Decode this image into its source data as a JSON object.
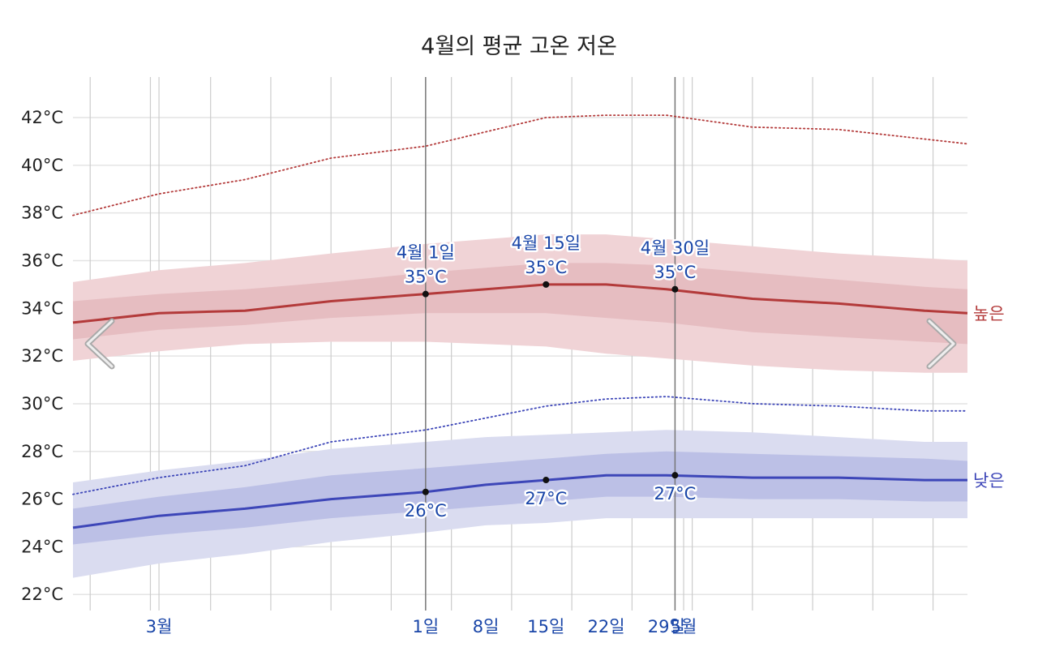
{
  "chart_data": {
    "type": "line",
    "title": "4월의 평균 고온 저온",
    "xlabel": "",
    "ylabel": "",
    "x_start": "2024-02-20",
    "x_end": "2024-06-03",
    "x_ticks": [
      {
        "date": "2024-03-01",
        "label": "3월"
      },
      {
        "date": "2024-04-01",
        "label": "1일"
      },
      {
        "date": "2024-04-08",
        "label": "8일"
      },
      {
        "date": "2024-04-15",
        "label": "15일"
      },
      {
        "date": "2024-04-22",
        "label": "22일"
      },
      {
        "date": "2024-04-29",
        "label": "29일"
      },
      {
        "date": "2024-05-01",
        "label": "5월"
      }
    ],
    "y_ticks": [
      {
        "value": 22,
        "label": "22°C"
      },
      {
        "value": 24,
        "label": "24°C"
      },
      {
        "value": 26,
        "label": "26°C"
      },
      {
        "value": 28,
        "label": "28°C"
      },
      {
        "value": 30,
        "label": "30°C"
      },
      {
        "value": 32,
        "label": "32°C"
      },
      {
        "value": 34,
        "label": "34°C"
      },
      {
        "value": 36,
        "label": "36°C"
      },
      {
        "value": 38,
        "label": "38°C"
      },
      {
        "value": 40,
        "label": "40°C"
      },
      {
        "value": 42,
        "label": "42°C"
      }
    ],
    "ylim": [
      21.6,
      43.7
    ],
    "grid": true,
    "x": [
      "2024-02-20",
      "2024-03-01",
      "2024-03-11",
      "2024-03-21",
      "2024-04-01",
      "2024-04-08",
      "2024-04-15",
      "2024-04-22",
      "2024-04-29",
      "2024-05-09",
      "2024-05-19",
      "2024-05-29",
      "2024-06-03"
    ],
    "series": [
      {
        "name": "높은",
        "color": "#b33a3a",
        "values": [
          33.4,
          33.8,
          33.9,
          34.3,
          34.6,
          34.8,
          35.0,
          35.0,
          34.8,
          34.4,
          34.2,
          33.9,
          33.8
        ],
        "band_p25": [
          32.7,
          33.1,
          33.3,
          33.6,
          33.8,
          33.8,
          33.8,
          33.6,
          33.4,
          33.0,
          32.8,
          32.6,
          32.5
        ],
        "band_p75": [
          34.3,
          34.6,
          34.8,
          35.1,
          35.5,
          35.7,
          35.9,
          35.9,
          35.8,
          35.5,
          35.2,
          34.9,
          34.8
        ],
        "band_p10": [
          31.8,
          32.2,
          32.5,
          32.6,
          32.6,
          32.5,
          32.4,
          32.1,
          31.9,
          31.6,
          31.4,
          31.3,
          31.3
        ],
        "band_p90": [
          35.1,
          35.6,
          35.9,
          36.3,
          36.7,
          36.9,
          37.1,
          37.1,
          36.9,
          36.6,
          36.3,
          36.1,
          36.0
        ],
        "record": [
          37.9,
          38.8,
          39.4,
          40.3,
          40.8,
          41.4,
          42.0,
          42.1,
          42.1,
          41.6,
          41.5,
          41.1,
          40.9
        ]
      },
      {
        "name": "낮은",
        "color": "#3d46b8",
        "values": [
          24.8,
          25.3,
          25.6,
          26.0,
          26.3,
          26.6,
          26.8,
          27.0,
          27.0,
          26.9,
          26.9,
          26.8,
          26.8
        ],
        "band_p25": [
          24.1,
          24.5,
          24.8,
          25.2,
          25.5,
          25.7,
          25.9,
          26.1,
          26.1,
          26.0,
          26.0,
          25.9,
          25.9
        ],
        "band_p75": [
          25.6,
          26.1,
          26.5,
          27.0,
          27.3,
          27.5,
          27.7,
          27.9,
          28.0,
          27.9,
          27.8,
          27.7,
          27.6
        ],
        "band_p10": [
          22.7,
          23.3,
          23.7,
          24.2,
          24.6,
          24.9,
          25.0,
          25.2,
          25.2,
          25.2,
          25.2,
          25.2,
          25.2
        ],
        "band_p90": [
          26.7,
          27.2,
          27.6,
          28.1,
          28.4,
          28.6,
          28.7,
          28.8,
          28.9,
          28.8,
          28.6,
          28.4,
          28.4
        ],
        "record": [
          26.2,
          26.9,
          27.4,
          28.4,
          28.9,
          29.4,
          29.9,
          30.2,
          30.3,
          30.0,
          29.9,
          29.7,
          29.7
        ]
      }
    ],
    "annotations": [
      {
        "date": "2024-04-01",
        "value": 34.6,
        "lines": [
          "4월 1일",
          "35°C"
        ],
        "position": "above",
        "series": "높은"
      },
      {
        "date": "2024-04-15",
        "value": 35.0,
        "lines": [
          "4월 15일",
          "35°C"
        ],
        "position": "above",
        "series": "높은"
      },
      {
        "date": "2024-04-30",
        "value": 34.8,
        "lines": [
          "4월 30일",
          "35°C"
        ],
        "position": "above",
        "series": "높은"
      },
      {
        "date": "2024-04-01",
        "value": 26.3,
        "lines": [
          "26°C"
        ],
        "position": "below",
        "series": "낮은"
      },
      {
        "date": "2024-04-15",
        "value": 26.8,
        "lines": [
          "27°C"
        ],
        "position": "below",
        "series": "낮은"
      },
      {
        "date": "2024-04-30",
        "value": 27.0,
        "lines": [
          "27°C"
        ],
        "position": "below",
        "series": "낮은"
      }
    ],
    "cursor_dates": [
      "2024-04-01",
      "2024-04-30"
    ],
    "legend": "right-inline"
  },
  "colors": {
    "high": "#b33a3a",
    "high_band_outer": "#f0d3d6",
    "high_band_inner": "#e6bdc1",
    "low": "#3d46b8",
    "low_band_outer": "#dadcf0",
    "low_band_inner": "#bcc0e6",
    "accent_text": "#1a46a8",
    "grid": "#e4e4e4",
    "vgrid": "#cccccc",
    "cursor": "#777777"
  },
  "nav": {
    "prev_icon": "chevron-left-icon",
    "next_icon": "chevron-right-icon"
  }
}
